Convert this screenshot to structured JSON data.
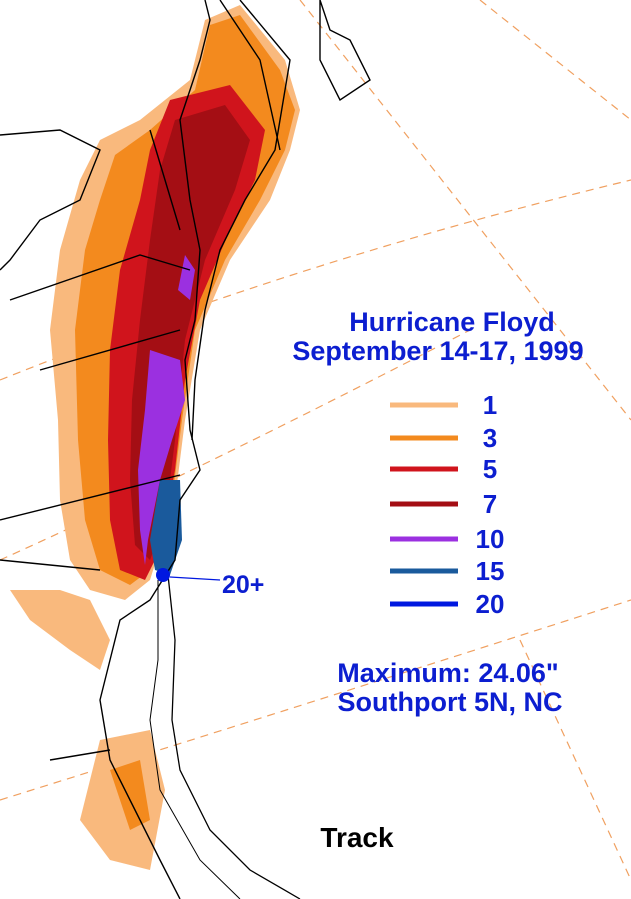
{
  "title": "Hurricane Floyd",
  "subtitle": "September 14-17, 1999",
  "legend": [
    {
      "value": 1,
      "color": "#f9b97d"
    },
    {
      "value": 3,
      "color": "#f38a1e"
    },
    {
      "value": 5,
      "color": "#d0141c"
    },
    {
      "value": 7,
      "color": "#a40e14"
    },
    {
      "value": 10,
      "color": "#9b30e0"
    },
    {
      "value": 15,
      "color": "#1a5a9c"
    },
    {
      "value": 20,
      "color": "#0018e0"
    }
  ],
  "max_marker_label": "20+",
  "maximum": "Maximum:  24.06\"",
  "maximum_location": "Southport 5N, NC",
  "track_label": "Track"
}
